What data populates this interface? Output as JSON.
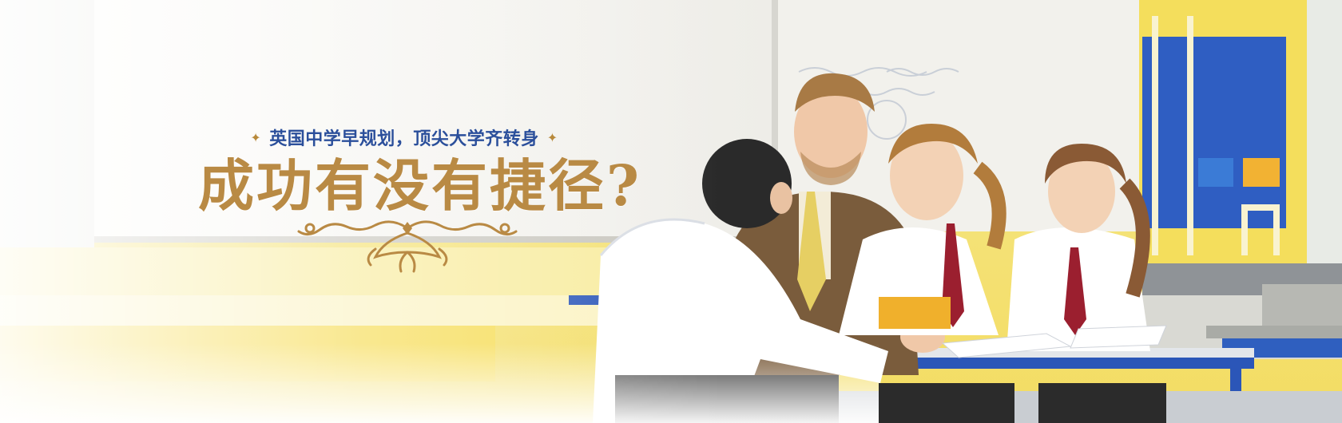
{
  "banner": {
    "tagline": "英国中学早规划，顶尖大学齐转身",
    "tagline_ornament": "✦",
    "headline": "成功有没有捷径?",
    "colors": {
      "tagline": "#2b4f9b",
      "headline": "#b98a44",
      "wall": "#f5e27a",
      "whiteboard": "#f7f6f2",
      "desk": "#2b56b8"
    },
    "scene": "classroom-photo"
  }
}
